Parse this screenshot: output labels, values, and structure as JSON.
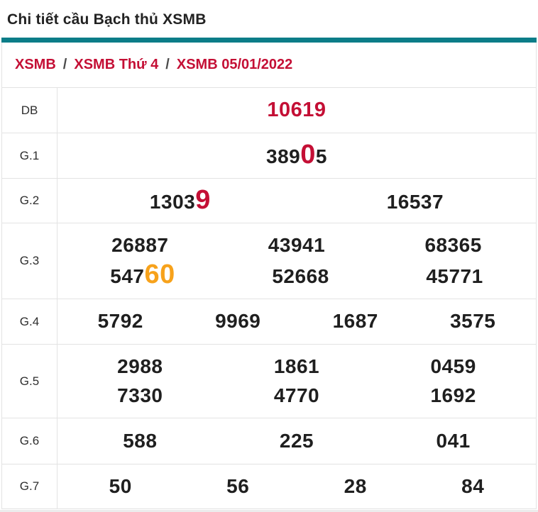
{
  "page": {
    "title": "Chi tiết cầu Bạch thủ XSMB"
  },
  "breadcrumb": {
    "separator": "/",
    "items": [
      "XSMB",
      "XSMB Thứ 4",
      "XSMB 05/01/2022"
    ]
  },
  "colors": {
    "accent": "#0b7d88",
    "highlight_red": "#c40f35",
    "highlight_orange": "#f7a21b"
  },
  "table": {
    "rows": {
      "db": {
        "label": "DB",
        "value": "10619"
      },
      "g1": {
        "label": "G.1",
        "pre": "389",
        "highlight": "0",
        "post": "5"
      },
      "g2": {
        "label": "G.2",
        "col1_pre": "1303",
        "col1_highlight": "9",
        "col2": "16537"
      },
      "g3": {
        "label": "G.3",
        "line1": [
          "26887",
          "43941",
          "68365"
        ],
        "line2_pre": "547",
        "line2_highlight": "60",
        "line2_rest": [
          "52668",
          "45771"
        ]
      },
      "g4": {
        "label": "G.4",
        "values": [
          "5792",
          "9969",
          "1687",
          "3575"
        ]
      },
      "g5": {
        "label": "G.5",
        "line1": [
          "2988",
          "1861",
          "0459"
        ],
        "line2": [
          "7330",
          "4770",
          "1692"
        ]
      },
      "g6": {
        "label": "G.6",
        "values": [
          "588",
          "225",
          "041"
        ]
      },
      "g7": {
        "label": "G.7",
        "values": [
          "50",
          "56",
          "28",
          "84"
        ]
      }
    }
  }
}
